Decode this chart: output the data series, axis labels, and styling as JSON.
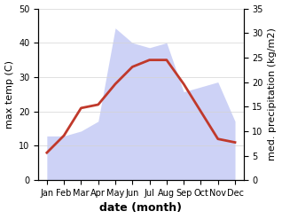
{
  "months": [
    "Jan",
    "Feb",
    "Mar",
    "Apr",
    "May",
    "Jun",
    "Jul",
    "Aug",
    "Sep",
    "Oct",
    "Nov",
    "Dec"
  ],
  "temperature": [
    8,
    13,
    21,
    22,
    28,
    33,
    35,
    35,
    28,
    20,
    12,
    11
  ],
  "precipitation": [
    9,
    9,
    10,
    12,
    31,
    28,
    27,
    28,
    18,
    19,
    20,
    12
  ],
  "temp_ylim": [
    0,
    50
  ],
  "precip_ylim": [
    0,
    35
  ],
  "temp_color": "#c0392b",
  "precip_fill_color": "#c8cef5",
  "xlabel": "date (month)",
  "ylabel_left": "max temp (C)",
  "ylabel_right": "med. precipitation (kg/m2)",
  "temp_linewidth": 2.0,
  "xlabel_fontsize": 9,
  "ylabel_fontsize": 8,
  "tick_fontsize": 7,
  "bg_color": "#ffffff"
}
